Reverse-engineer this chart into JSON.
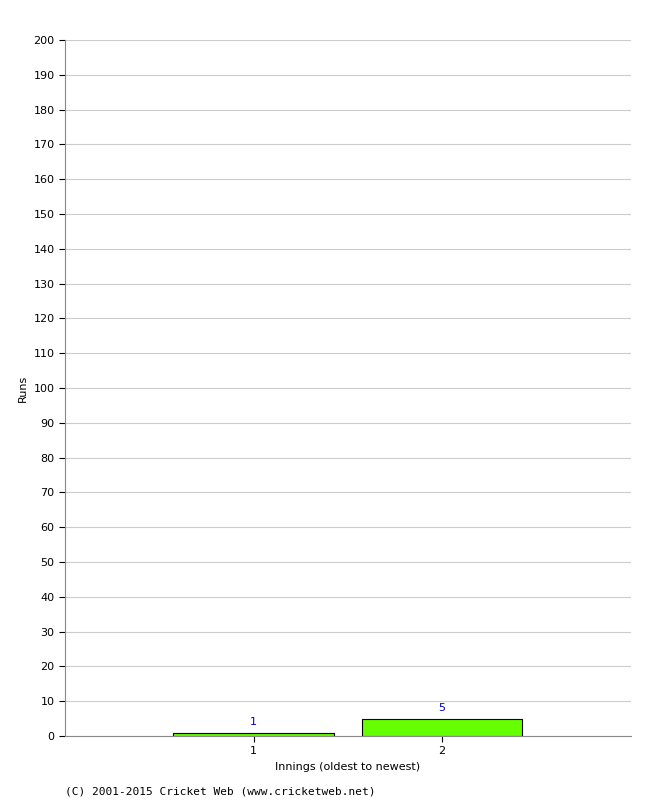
{
  "categories": [
    1,
    2
  ],
  "values": [
    1,
    5
  ],
  "bar_color": "#66ff00",
  "bar_edge_color": "#000000",
  "xlabel": "Innings (oldest to newest)",
  "ylabel": "Runs",
  "ylim": [
    0,
    200
  ],
  "yticks": [
    0,
    10,
    20,
    30,
    40,
    50,
    60,
    70,
    80,
    90,
    100,
    110,
    120,
    130,
    140,
    150,
    160,
    170,
    180,
    190,
    200
  ],
  "xticks": [
    1,
    2
  ],
  "xlim": [
    0,
    3
  ],
  "value_label_color": "#0000cc",
  "value_label_fontsize": 8,
  "axis_label_fontsize": 8,
  "tick_fontsize": 8,
  "footer_text": "(C) 2001-2015 Cricket Web (www.cricketweb.net)",
  "footer_fontsize": 8,
  "background_color": "#ffffff",
  "grid_color": "#cccccc",
  "bar_width": 0.85
}
